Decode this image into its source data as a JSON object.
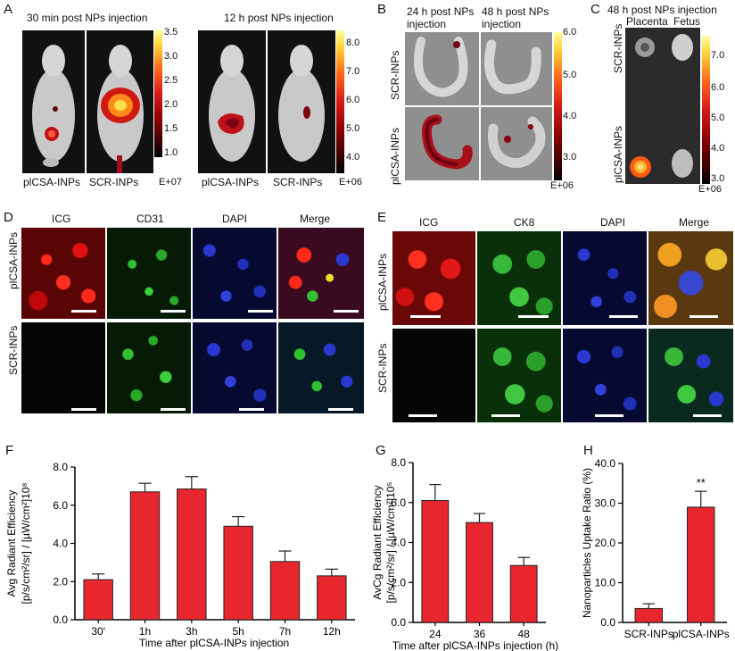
{
  "panels": {
    "A": {
      "letter": "A",
      "titles": [
        "30 min post NPs injection",
        "12 h post NPs injection"
      ],
      "labels": [
        "plCSA-INPs",
        "SCR-INPs",
        "plCSA-INPs",
        "SCR-INPs"
      ],
      "cbar1": {
        "ticks": [
          "3.5",
          "3.0",
          "2.5",
          "2.0",
          "1.5",
          "1.0"
        ],
        "exp": "E+07"
      },
      "cbar2": {
        "ticks": [
          "8.0",
          "7.0",
          "6.0",
          "5.0",
          "4.0"
        ],
        "exp": "E+06"
      }
    },
    "B": {
      "letter": "B",
      "col1": "24 h post NPs injection",
      "col2": "48 h post NPs injection",
      "row1": "SCR-INPs",
      "row2": "plCSA-INPs",
      "cbar": {
        "ticks": [
          "6.0",
          "5.0",
          "4.0",
          "3.0"
        ],
        "exp": "E+06"
      }
    },
    "C": {
      "letter": "C",
      "title": "48 h post NPs injection",
      "col1": "Placenta",
      "col2": "Fetus",
      "row1": "SCR-INPs",
      "row2": "plCSA-INPs",
      "cbar": {
        "ticks": [
          "7.0",
          "6.0",
          "5.0",
          "4.0",
          "3.0"
        ],
        "exp": "E+06"
      }
    },
    "D": {
      "letter": "D",
      "cols": [
        "ICG",
        "CD31",
        "DAPI",
        "Merge"
      ],
      "rows": [
        "plCSA-INPs",
        "SCR-INPs"
      ]
    },
    "E": {
      "letter": "E",
      "cols": [
        "ICG",
        "CK8",
        "DAPI",
        "Merge"
      ],
      "rows": [
        "plCSA-INPs",
        "SCR-INPs"
      ]
    }
  },
  "chart_data": [
    {
      "panel": "F",
      "type": "bar",
      "categories": [
        "30'",
        "1h",
        "3h",
        "5h",
        "7h",
        "12h"
      ],
      "values": [
        2.1,
        6.7,
        6.85,
        4.9,
        3.05,
        2.3
      ],
      "errors": [
        0.3,
        0.45,
        0.65,
        0.5,
        0.55,
        0.35
      ],
      "ylabel_line1": "Avg Radiant Efficiency",
      "ylabel_line2": "[p/s/cm²/sr] / [µW/cm²]10⁸",
      "xlabel": "Time after plCSA-INPs injection",
      "yticks": [
        "0.0",
        "2.0",
        "4.0",
        "6.0",
        "8.0"
      ],
      "ylim": [
        0,
        8
      ]
    },
    {
      "panel": "G",
      "type": "bar",
      "categories": [
        "24",
        "36",
        "48"
      ],
      "values": [
        6.1,
        5.0,
        2.85
      ],
      "errors": [
        0.8,
        0.45,
        0.4
      ],
      "ylabel_line1": "AvCg Radiant Efficiency",
      "ylabel_line2": "[p/s/cm²/sr] / [µW/cm²]10⁵",
      "xlabel": "Time after plCSA-INPs injection (h)",
      "yticks": [
        "0.0",
        "2.0",
        "4.0",
        "6.0",
        "8.0"
      ],
      "ylim": [
        0,
        8
      ]
    },
    {
      "panel": "H",
      "type": "bar",
      "categories": [
        "SCR-INPs",
        "plCSA-INPs"
      ],
      "values": [
        3.5,
        29.0
      ],
      "errors": [
        1.2,
        4.0
      ],
      "annotation": "**",
      "ylabel_line1": "Nanoparticles Uptake Ratio (%)",
      "xlabel": "",
      "yticks": [
        "0.0",
        "10.0",
        "20.0",
        "30.0",
        "40.0"
      ],
      "ylim": [
        0,
        40
      ]
    }
  ]
}
